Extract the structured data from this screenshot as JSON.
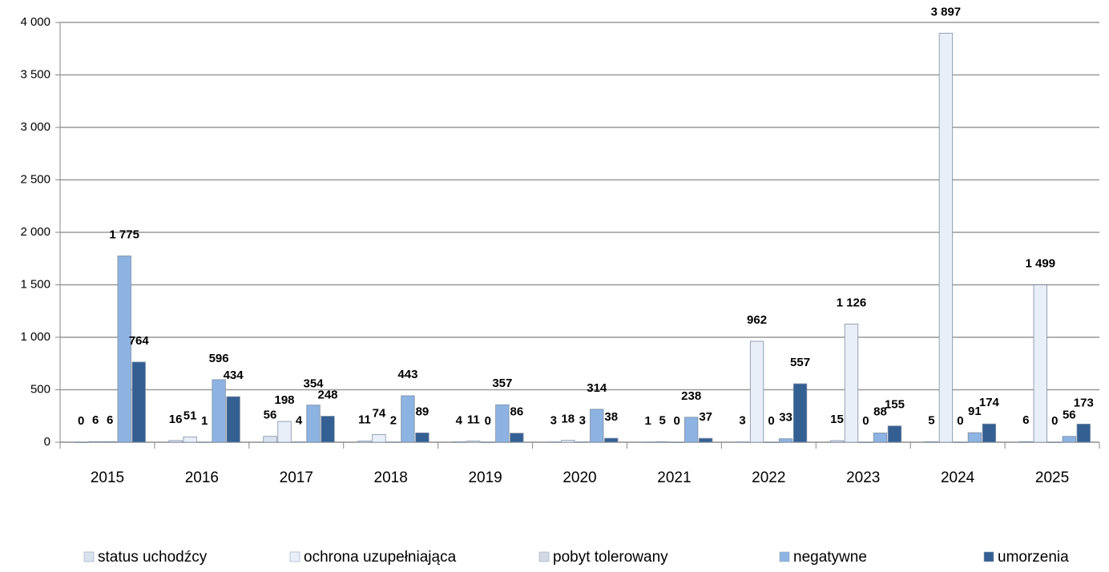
{
  "chart_data": {
    "type": "bar",
    "categories": [
      "2015",
      "2016",
      "2017",
      "2018",
      "2019",
      "2020",
      "2021",
      "2022",
      "2023",
      "2024",
      "2025"
    ],
    "series": [
      {
        "name": "status uchodźcy",
        "color": "#d9e3f0",
        "values": [
          0,
          16,
          56,
          11,
          4,
          3,
          1,
          3,
          15,
          5,
          6
        ]
      },
      {
        "name": "ochrona uzupełniająca",
        "color": "#e8eff9",
        "values": [
          6,
          51,
          198,
          74,
          11,
          18,
          5,
          962,
          1126,
          3897,
          1499
        ],
        "value_labels": [
          "6",
          "51",
          "198",
          "74",
          "11",
          "18",
          "5",
          "962",
          "1 126",
          "3 897",
          "1 499"
        ]
      },
      {
        "name": "pobyt tolerowany",
        "color": "#d3d9e4",
        "values": [
          6,
          1,
          4,
          2,
          0,
          3,
          0,
          0,
          0,
          0,
          0
        ]
      },
      {
        "name": "negatywne",
        "color": "#8db3e2",
        "values": [
          1775,
          596,
          354,
          443,
          357,
          314,
          238,
          33,
          88,
          91,
          56
        ],
        "value_labels": [
          "1 775",
          "596",
          "354",
          "443",
          "357",
          "314",
          "238",
          "33",
          "88",
          "91",
          "56"
        ]
      },
      {
        "name": "umorzenia",
        "color": "#345f93",
        "values": [
          764,
          434,
          248,
          89,
          86,
          38,
          37,
          557,
          155,
          174,
          173
        ]
      }
    ],
    "ylim": [
      0,
      4000
    ],
    "yticks": [
      0,
      500,
      {
        "value": 1000,
        "label": "1 000"
      },
      {
        "value": 1500,
        "label": "1 500"
      },
      {
        "value": 2000,
        "label": "2 000"
      },
      {
        "value": 2500,
        "label": "2 500"
      },
      {
        "value": 3000,
        "label": "3 000"
      },
      {
        "value": 3500,
        "label": "3 500"
      },
      {
        "value": 4000,
        "label": "4 000"
      }
    ],
    "grid": true,
    "legend": "bottom"
  }
}
